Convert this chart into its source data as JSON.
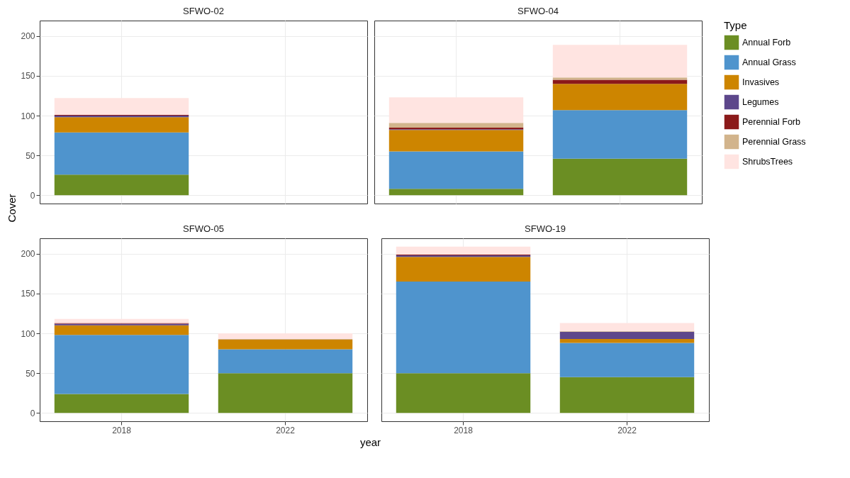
{
  "chart_data": [
    {
      "type": "bar",
      "title": "SFWO-02",
      "ylabel": "Cover",
      "legend": "right",
      "legend_title": "Type",
      "stacked": true,
      "grid": true,
      "tick_labels": "y",
      "categories": [
        "2018",
        "2022"
      ],
      "ylim": [
        -10.4,
        219.4
      ],
      "yticks": [
        0,
        50,
        100,
        150,
        200
      ],
      "series": [
        {
          "name": "Annual Forb",
          "color": "#6b8e23",
          "values": [
            26,
            null
          ]
        },
        {
          "name": "Annual Grass",
          "color": "#4f94cd",
          "values": [
            53,
            null
          ]
        },
        {
          "name": "Invasives",
          "color": "#cd8500",
          "values": [
            19,
            null
          ]
        },
        {
          "name": "Legumes",
          "color": "#5d478b",
          "values": [
            2,
            null
          ]
        },
        {
          "name": "Perennial Forb",
          "color": "#8b1a1a",
          "values": [
            1,
            null
          ]
        },
        {
          "name": "Perennial Grass",
          "color": "#d2b48c",
          "values": [
            null,
            null
          ]
        },
        {
          "name": "ShrubsTrees",
          "color": "#ffe4e1",
          "values": [
            21,
            null
          ]
        }
      ]
    },
    {
      "type": "bar",
      "title": "SFWO-04",
      "stacked": true,
      "grid": true,
      "tick_labels": false,
      "categories": [
        "2018",
        "2022"
      ],
      "ylim": [
        -10.4,
        219.4
      ],
      "yticks": [
        0,
        50,
        100,
        150,
        200
      ],
      "series": [
        {
          "color": "#6b8e23",
          "values": [
            8,
            46
          ]
        },
        {
          "color": "#4f94cd",
          "values": [
            47,
            61
          ]
        },
        {
          "color": "#cd8500",
          "values": [
            27,
            33
          ]
        },
        {
          "color": "#5d478b",
          "values": [
            1,
            null
          ]
        },
        {
          "color": "#8b1a1a",
          "values": [
            2,
            5
          ]
        },
        {
          "color": "#d2b48c",
          "values": [
            6,
            3
          ]
        },
        {
          "color": "#ffe4e1",
          "values": [
            32,
            41
          ]
        }
      ]
    },
    {
      "type": "bar",
      "title": "SFWO-05",
      "xlabel": "year",
      "stacked": true,
      "grid": true,
      "categories": [
        "2018",
        "2022"
      ],
      "ylim": [
        -10.4,
        219.4
      ],
      "yticks": [
        0,
        50,
        100,
        150,
        200
      ],
      "series": [
        {
          "color": "#6b8e23",
          "values": [
            24,
            50
          ]
        },
        {
          "color": "#4f94cd",
          "values": [
            74,
            30
          ]
        },
        {
          "color": "#cd8500",
          "values": [
            12,
            12
          ]
        },
        {
          "color": "#5d478b",
          "values": [
            2,
            null
          ]
        },
        {
          "color": "#8b1a1a",
          "values": [
            1,
            null
          ]
        },
        {
          "color": "#d2b48c",
          "values": [
            null,
            1
          ]
        },
        {
          "color": "#ffe4e1",
          "values": [
            5,
            7
          ]
        }
      ]
    },
    {
      "type": "bar",
      "title": "SFWO-19",
      "stacked": true,
      "grid": true,
      "tick_labels": "x",
      "categories": [
        "2018",
        "2022"
      ],
      "ylim": [
        -10.4,
        219.4
      ],
      "yticks": [
        0,
        50,
        100,
        150,
        200
      ],
      "series": [
        {
          "color": "#6b8e23",
          "values": [
            50,
            45
          ]
        },
        {
          "color": "#4f94cd",
          "values": [
            115,
            43
          ]
        },
        {
          "color": "#cd8500",
          "values": [
            31,
            5
          ]
        },
        {
          "color": "#5d478b",
          "values": [
            2,
            9
          ]
        },
        {
          "color": "#8b1a1a",
          "values": [
            1,
            null
          ]
        },
        {
          "color": "#d2b48c",
          "values": [
            null,
            1
          ]
        },
        {
          "color": "#ffe4e1",
          "values": [
            10,
            10
          ]
        }
      ]
    }
  ]
}
